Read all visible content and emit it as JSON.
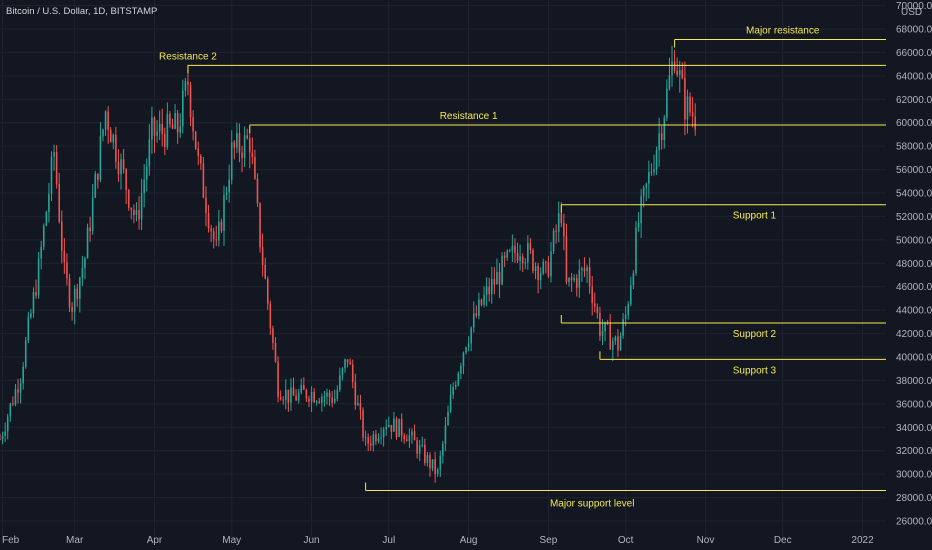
{
  "chart_title": "Bitcoin / U.S. Dollar, 1D, BITSTAMP",
  "currency_label": "USD",
  "colors": {
    "background": "#131722",
    "up": "#26a69a",
    "down": "#ef5350",
    "level": "#f5e94f",
    "text": "#b2b5be"
  },
  "chart_data": {
    "type": "candlestick",
    "title": "Bitcoin / U.S. Dollar, 1D, BITSTAMP",
    "ylabel": "USD",
    "ylim": [
      25000,
      70000
    ],
    "yticks": [
      "26000.00",
      "28000.00",
      "30000.00",
      "32000.00",
      "34000.00",
      "36000.00",
      "38000.00",
      "40000.00",
      "42000.00",
      "44000.00",
      "46000.00",
      "48000.00",
      "50000.00",
      "52000.00",
      "54000.00",
      "56000.00",
      "58000.00",
      "60000.00",
      "62000.00",
      "64000.00",
      "66000.00",
      "68000.00",
      "70000.00"
    ],
    "xticks": [
      {
        "date": "2021-02-01",
        "label": "Feb"
      },
      {
        "date": "2021-03-01",
        "label": "Mar"
      },
      {
        "date": "2021-04-01",
        "label": "Apr"
      },
      {
        "date": "2021-05-01",
        "label": "May"
      },
      {
        "date": "2021-06-01",
        "label": "Jun"
      },
      {
        "date": "2021-07-01",
        "label": "Jul"
      },
      {
        "date": "2021-08-01",
        "label": "Aug"
      },
      {
        "date": "2021-09-01",
        "label": "Sep"
      },
      {
        "date": "2021-10-01",
        "label": "Oct"
      },
      {
        "date": "2021-11-01",
        "label": "Nov"
      },
      {
        "date": "2021-12-01",
        "label": "Dec"
      },
      {
        "date": "2022-01-01",
        "label": "2022"
      }
    ],
    "price_path": [
      [
        "2021-01-31",
        33000
      ],
      [
        "2021-02-08",
        38500
      ],
      [
        "2021-02-15",
        47500
      ],
      [
        "2021-02-21",
        57500
      ],
      [
        "2021-02-25",
        47000
      ],
      [
        "2021-02-28",
        44500
      ],
      [
        "2021-03-05",
        48500
      ],
      [
        "2021-03-13",
        61000
      ],
      [
        "2021-03-18",
        57000
      ],
      [
        "2021-03-25",
        51500
      ],
      [
        "2021-03-31",
        59000
      ],
      [
        "2021-04-10",
        59500
      ],
      [
        "2021-04-14",
        63500
      ],
      [
        "2021-04-18",
        56500
      ],
      [
        "2021-04-25",
        49000
      ],
      [
        "2021-05-01",
        57500
      ],
      [
        "2021-05-08",
        58500
      ],
      [
        "2021-05-12",
        50000
      ],
      [
        "2021-05-19",
        37500
      ],
      [
        "2021-05-24",
        36500
      ],
      [
        "2021-05-31",
        37000
      ],
      [
        "2021-06-10",
        36500
      ],
      [
        "2021-06-15",
        40000
      ],
      [
        "2021-06-22",
        32500
      ],
      [
        "2021-06-30",
        34500
      ],
      [
        "2021-07-08",
        33500
      ],
      [
        "2021-07-20",
        30000
      ],
      [
        "2021-07-26",
        37500
      ],
      [
        "2021-07-31",
        41500
      ],
      [
        "2021-08-07",
        45000
      ],
      [
        "2021-08-14",
        47500
      ],
      [
        "2021-08-21",
        49500
      ],
      [
        "2021-08-31",
        47000
      ],
      [
        "2021-09-06",
        52500
      ],
      [
        "2021-09-08",
        46000
      ],
      [
        "2021-09-16",
        47500
      ],
      [
        "2021-09-21",
        42500
      ],
      [
        "2021-09-28",
        41000
      ],
      [
        "2021-10-01",
        43500
      ],
      [
        "2021-10-06",
        51500
      ],
      [
        "2021-10-15",
        60000
      ],
      [
        "2021-10-20",
        66000
      ],
      [
        "2021-10-24",
        61500
      ],
      [
        "2021-10-28",
        60500
      ]
    ],
    "levels": [
      {
        "name": "Major resistance",
        "price": 67100,
        "start": "2021-10-20",
        "end": "2022-01-01",
        "label_date": "2021-12-01"
      },
      {
        "name": "Resistance 2",
        "price": 64900,
        "start": "2021-04-14",
        "end": "2022-01-01",
        "label_date": "2021-04-14"
      },
      {
        "name": "Resistance 1",
        "price": 59800,
        "start": "2021-05-08",
        "end": "2022-01-01",
        "label_date": "2021-08-01"
      },
      {
        "name": "Support 1",
        "price": 53000,
        "start": "2021-09-06",
        "end": "2022-01-01",
        "label_date": "2021-11-20"
      },
      {
        "name": "Support 2",
        "price": 42900,
        "start": "2021-09-06",
        "end": "2022-01-01",
        "label_date": "2021-11-20"
      },
      {
        "name": "Support 3",
        "price": 39800,
        "start": "2021-09-21",
        "end": "2022-01-01",
        "label_date": "2021-11-20"
      },
      {
        "name": "Major support level",
        "price": 28600,
        "start": "2021-06-22",
        "end": "2022-01-01",
        "label_date": "2021-09-18"
      }
    ]
  }
}
